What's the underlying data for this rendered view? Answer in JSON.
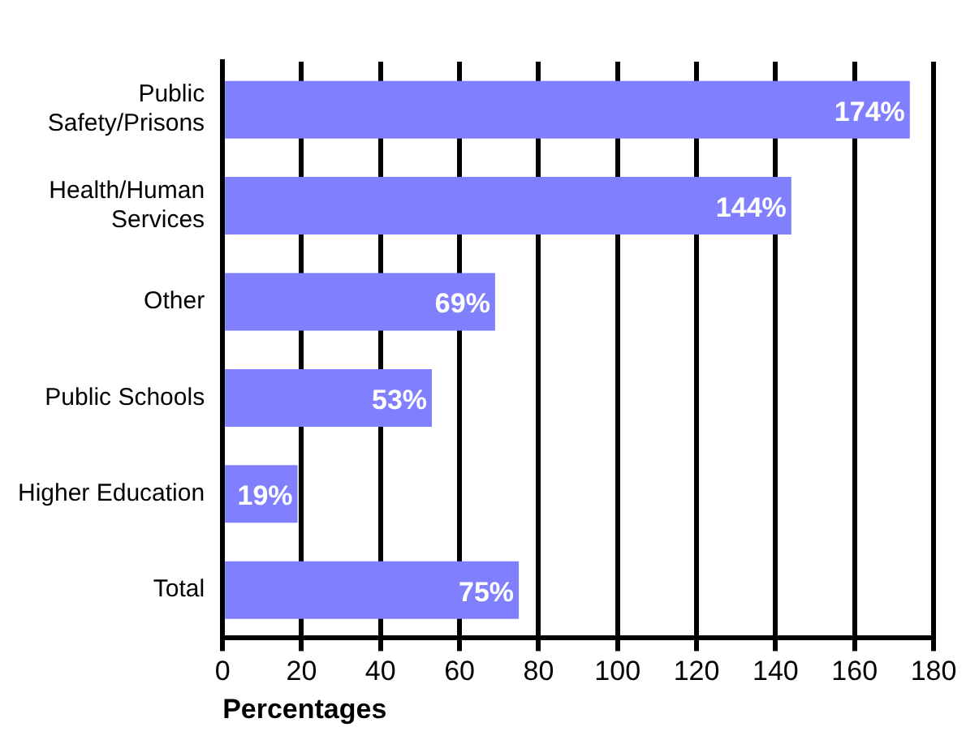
{
  "chart_data": {
    "type": "bar",
    "orientation": "horizontal",
    "categories": [
      "Public Safety/Prisons",
      "Health/Human Services",
      "Other",
      "Public Schools",
      "Higher Education",
      "Total"
    ],
    "values": [
      174,
      144,
      69,
      53,
      19,
      75
    ],
    "color": "#8080ff",
    "xlim": [
      0,
      180
    ],
    "xticks": [
      0,
      20,
      40,
      60,
      80,
      100,
      120,
      140,
      160,
      180
    ],
    "xlabel": "Percentages",
    "grid": "x",
    "legend": false,
    "value_labels": [
      "174%",
      "144%",
      "69%",
      "53%",
      "19%",
      "75%"
    ]
  }
}
